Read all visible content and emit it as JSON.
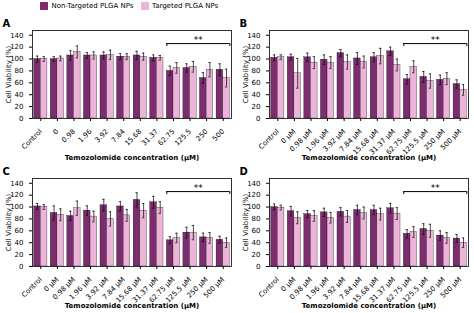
{
  "chart_data": [
    {
      "type": "bar",
      "title": "A",
      "xlabel": "Temozolomide concentration (μM)",
      "ylabel": "Cell Viability (%)",
      "categories": [
        "Control",
        "0",
        "0.98",
        "1.96",
        "3.92",
        "7.84",
        "15.68",
        "31.37",
        "62.75",
        "125.5",
        "250",
        "500"
      ],
      "series": [
        {
          "name": "Non-Targeted PLGA NPs",
          "color": "#7B2D6E",
          "values": [
            100,
            100,
            106,
            106,
            106,
            104,
            106,
            102,
            80,
            85,
            68,
            82
          ],
          "errors": [
            5,
            4,
            8,
            5,
            6,
            5,
            7,
            5,
            8,
            7,
            9,
            10
          ]
        },
        {
          "name": "Targeted PLGA NPs",
          "color": "#EBB4D8",
          "values": [
            100,
            101,
            112,
            106,
            107,
            104,
            104,
            102,
            85,
            87,
            82,
            68
          ],
          "errors": [
            4,
            4,
            10,
            6,
            8,
            5,
            6,
            4,
            9,
            9,
            12,
            15
          ]
        }
      ],
      "ylim": [
        0,
        148
      ],
      "yticks": [
        0,
        20,
        40,
        60,
        80,
        100,
        120,
        140
      ],
      "grid": false,
      "legend": "upper left",
      "annotations": [
        {
          "text": "**",
          "x_start": "62.75",
          "x_end": "500",
          "y": 126,
          "drop": 5
        }
      ]
    },
    {
      "type": "bar",
      "title": "B",
      "xlabel": "Temozolomide concentration (μM)",
      "ylabel": "Cell Viability (%)",
      "categories": [
        "Control",
        "0 μM",
        "0.98 μM",
        "1.96 μM",
        "3.92 μM",
        "7.84 μM",
        "15.68 μM",
        "31.37 μM",
        "62.75 μM",
        "125.5 μM",
        "250 μM",
        "500 μM"
      ],
      "series": [
        {
          "name": "Non-Targeted PLGA NPs",
          "color": "#7B2D6E",
          "values": [
            102,
            103,
            103,
            99,
            110,
            101,
            103,
            113,
            66,
            70,
            65,
            58
          ],
          "errors": [
            5,
            5,
            7,
            8,
            6,
            10,
            8,
            7,
            8,
            9,
            8,
            7
          ]
        },
        {
          "name": "Targeted PLGA NPs",
          "color": "#EBB4D8",
          "values": [
            103,
            76,
            94,
            94,
            95,
            95,
            105,
            90,
            87,
            63,
            67,
            48
          ],
          "errors": [
            4,
            25,
            10,
            10,
            12,
            10,
            13,
            10,
            10,
            12,
            10,
            9
          ]
        }
      ],
      "ylim": [
        0,
        148
      ],
      "yticks": [
        0,
        20,
        40,
        60,
        80,
        100,
        120,
        140
      ],
      "grid": false,
      "legend": false,
      "annotations": [
        {
          "text": "**",
          "x_start": "62.75 μM",
          "x_end": "500 μM",
          "y": 126,
          "drop": 5
        }
      ]
    },
    {
      "type": "bar",
      "title": "C",
      "xlabel": "Temozolomide concentration (μM)",
      "ylabel": "Cell Viability (%)",
      "categories": [
        "Control",
        "0 μM",
        "0.98 μM",
        "1.96 μM",
        "3.92 μM",
        "7.84 μM",
        "15.68 μM",
        "31.37 μM",
        "62.75 μM",
        "125.5 μM",
        "250 μM",
        "500 μM"
      ],
      "series": [
        {
          "name": "Non-Targeted PLGA NPs",
          "color": "#7B2D6E",
          "values": [
            101,
            90,
            85,
            94,
            103,
            101,
            112,
            108,
            44,
            57,
            49,
            45
          ],
          "errors": [
            5,
            12,
            8,
            8,
            10,
            8,
            12,
            10,
            6,
            9,
            7,
            6
          ]
        },
        {
          "name": "Targeted PLGA NPs",
          "color": "#EBB4D8",
          "values": [
            100,
            87,
            98,
            84,
            80,
            86,
            94,
            99,
            48,
            57,
            48,
            40
          ],
          "errors": [
            4,
            10,
            12,
            9,
            12,
            10,
            12,
            10,
            8,
            12,
            9,
            8
          ]
        }
      ],
      "ylim": [
        0,
        148
      ],
      "yticks": [
        0,
        20,
        40,
        60,
        80,
        100,
        120,
        140
      ],
      "grid": false,
      "legend": false,
      "annotations": [
        {
          "text": "**",
          "x_start": "62.75 μM",
          "x_end": "500 μM",
          "y": 126,
          "drop": 5
        }
      ]
    },
    {
      "type": "bar",
      "title": "D",
      "xlabel": "Temozolomide concentration (μM)",
      "ylabel": "Cell Viability (%)",
      "categories": [
        "Control",
        "0 μM",
        "0.98 μM",
        "1.96 μM",
        "3.92 μM",
        "7.84 μM",
        "15.68 μM",
        "31.37 μM",
        "62.75 μM",
        "125.5 μM",
        "250 μM",
        "500 μM"
      ],
      "series": [
        {
          "name": "Non-Targeted PLGA NPs",
          "color": "#7B2D6E",
          "values": [
            100,
            93,
            88,
            91,
            92,
            95,
            95,
            98,
            55,
            63,
            52,
            47
          ],
          "errors": [
            5,
            8,
            6,
            7,
            7,
            8,
            8,
            8,
            7,
            9,
            8,
            7
          ]
        },
        {
          "name": "Targeted PLGA NPs",
          "color": "#EBB4D8",
          "values": [
            99,
            82,
            85,
            82,
            84,
            90,
            88,
            89,
            58,
            60,
            48,
            40
          ],
          "errors": [
            4,
            10,
            9,
            9,
            10,
            10,
            10,
            10,
            9,
            11,
            9,
            8
          ]
        }
      ],
      "ylim": [
        0,
        148
      ],
      "yticks": [
        0,
        20,
        40,
        60,
        80,
        100,
        120,
        140
      ],
      "grid": false,
      "legend": false,
      "annotations": [
        {
          "text": "**",
          "x_start": "62.75 μM",
          "x_end": "500 μM",
          "y": 126,
          "drop": 5
        }
      ]
    }
  ]
}
